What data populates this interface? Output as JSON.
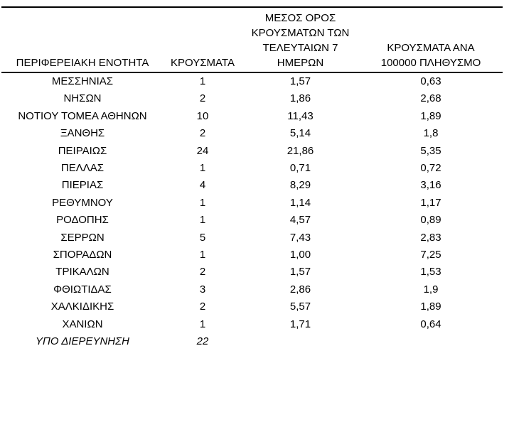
{
  "table": {
    "columns": [
      {
        "key": "region",
        "label_lines": [
          "ΠΕΡΙΦΕΡΕΙΑΚΗ ΕΝΟΤΗΤΑ"
        ]
      },
      {
        "key": "cases",
        "label_lines": [
          "ΚΡΟΥΣΜΑΤΑ"
        ]
      },
      {
        "key": "avg7",
        "label_lines": [
          "ΜΕΣΟΣ ΟΡΟΣ",
          "ΚΡΟΥΣΜΑΤΩΝ ΤΩΝ",
          "ΤΕΛΕΥΤΑΙΩΝ 7",
          "ΗΜΕΡΩΝ"
        ]
      },
      {
        "key": "per100k",
        "label_lines": [
          "ΚΡΟΥΣΜΑΤΑ ΑΝΑ",
          "100000 ΠΛΗΘΥΣΜΟ"
        ]
      }
    ],
    "rows": [
      {
        "region": "ΜΕΣΣΗΝΙΑΣ",
        "cases": "1",
        "avg7": "1,57",
        "per100k": "0,63"
      },
      {
        "region": "ΝΗΣΩΝ",
        "cases": "2",
        "avg7": "1,86",
        "per100k": "2,68"
      },
      {
        "region": "ΝΟΤΙΟΥ ΤΟΜΕΑ ΑΘΗΝΩΝ",
        "cases": "10",
        "avg7": "11,43",
        "per100k": "1,89"
      },
      {
        "region": "ΞΑΝΘΗΣ",
        "cases": "2",
        "avg7": "5,14",
        "per100k": "1,8"
      },
      {
        "region": "ΠΕΙΡΑΙΩΣ",
        "cases": "24",
        "avg7": "21,86",
        "per100k": "5,35"
      },
      {
        "region": "ΠΕΛΛΑΣ",
        "cases": "1",
        "avg7": "0,71",
        "per100k": "0,72"
      },
      {
        "region": "ΠΙΕΡΙΑΣ",
        "cases": "4",
        "avg7": "8,29",
        "per100k": "3,16"
      },
      {
        "region": "ΡΕΘΥΜΝΟΥ",
        "cases": "1",
        "avg7": "1,14",
        "per100k": "1,17"
      },
      {
        "region": "ΡΟΔΟΠΗΣ",
        "cases": "1",
        "avg7": "4,57",
        "per100k": "0,89"
      },
      {
        "region": "ΣΕΡΡΩΝ",
        "cases": "5",
        "avg7": "7,43",
        "per100k": "2,83"
      },
      {
        "region": "ΣΠΟΡΑΔΩΝ",
        "cases": "1",
        "avg7": "1,00",
        "per100k": "7,25"
      },
      {
        "region": "ΤΡΙΚΑΛΩΝ",
        "cases": "2",
        "avg7": "1,57",
        "per100k": "1,53"
      },
      {
        "region": "ΦΘΙΩΤΙΔΑΣ",
        "cases": "3",
        "avg7": "2,86",
        "per100k": "1,9"
      },
      {
        "region": "ΧΑΛΚΙΔΙΚΗΣ",
        "cases": "2",
        "avg7": "5,57",
        "per100k": "1,89"
      },
      {
        "region": "ΧΑΝΙΩΝ",
        "cases": "1",
        "avg7": "1,71",
        "per100k": "0,64"
      },
      {
        "region": "ΥΠΟ ΔΙΕΡΕΥΝΗΣΗ",
        "cases": "22",
        "avg7": "",
        "per100k": "",
        "italic": true
      }
    ]
  },
  "colors": {
    "text": "#000000",
    "background": "#ffffff",
    "rule": "#000000"
  }
}
